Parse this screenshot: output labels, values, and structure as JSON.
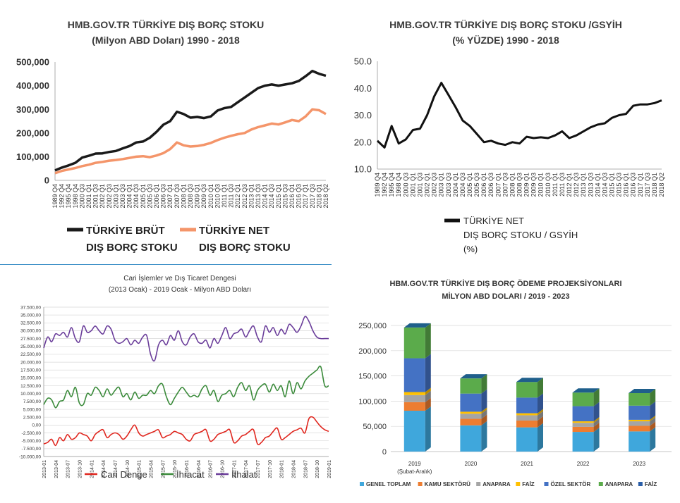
{
  "chart_data": [
    {
      "type": "line",
      "title": "HMB.GOV.TR TÜRKİYE DIŞ BORÇ STOKU",
      "subtitle": "(Milyon ABD Doları) 1990 - 2018",
      "y_ticks": [
        "500,000",
        "400,000",
        "300,000",
        "200,000",
        "100,000",
        "0"
      ],
      "ylim": [
        0,
        500000
      ],
      "x_ticks": [
        "1989 Q4",
        "1992 Q4",
        "1995 Q4",
        "1998 Q4",
        "2000 Q3",
        "2001 Q1",
        "2001 Q3",
        "2002 Q1",
        "2002 Q3",
        "2003 Q1",
        "2003 Q3",
        "2004 Q1",
        "2004 Q3",
        "2005 Q1",
        "2005 Q3",
        "2006 Q1",
        "2006 Q3",
        "2007 Q1",
        "2007 Q3",
        "2008 Q1",
        "2008 Q3",
        "2009 Q1",
        "2009 Q3",
        "2010 Q1",
        "2010 Q3",
        "2011 Q1",
        "2011 Q3",
        "2012 Q1",
        "2012 Q3",
        "2013 Q1",
        "2013 Q3",
        "2014 Q1",
        "2014 Q3",
        "2015 Q1",
        "2015 Q3",
        "2016 Q1",
        "2016 Q3",
        "2017 Q1",
        "2017 Q3",
        "2018 Q1",
        "2018 Q2"
      ],
      "series": [
        {
          "name": "TÜRKİYE BRÜT DIŞ BORÇ STOKU",
          "legend_lines": [
            "TÜRKİYE BRÜT",
            "DIŞ BORÇ STOKU"
          ],
          "color": "#1a1a1a",
          "values": [
            42000,
            54000,
            63000,
            74000,
            96000,
            104000,
            113000,
            114000,
            120000,
            124000,
            135000,
            145000,
            160000,
            164000,
            180000,
            205000,
            235000,
            250000,
            290000,
            280000,
            265000,
            268000,
            263000,
            270000,
            295000,
            305000,
            310000,
            330000,
            350000,
            370000,
            390000,
            400000,
            405000,
            400000,
            405000,
            410000,
            420000,
            440000,
            462000,
            450000,
            442000
          ]
        },
        {
          "name": "TÜRKİYE NET DIŞ BORÇ STOKU",
          "legend_lines": [
            "TÜRKİYE NET",
            "DIŞ BORÇ STOKU"
          ],
          "color": "#f4956a",
          "values": [
            30000,
            40000,
            46000,
            52000,
            60000,
            66000,
            74000,
            78000,
            83000,
            86000,
            90000,
            95000,
            100000,
            102000,
            98000,
            105000,
            115000,
            132000,
            160000,
            148000,
            143000,
            145000,
            150000,
            158000,
            170000,
            180000,
            188000,
            195000,
            200000,
            215000,
            225000,
            232000,
            240000,
            236000,
            245000,
            255000,
            250000,
            270000,
            300000,
            296000,
            280000
          ]
        }
      ]
    },
    {
      "type": "line",
      "title": "HMB.GOV.TR TÜRKİYE DIŞ BORÇ STOKU /GSYİH",
      "subtitle": "(% YÜZDE) 1990 - 2018",
      "y_ticks": [
        "50.0",
        "40.0",
        "30.0",
        "20.0",
        "10.0"
      ],
      "ylim": [
        10,
        50
      ],
      "x_ticks": [
        "1989 Q4",
        "1992 Q4",
        "1995 Q4",
        "1998 Q4",
        "2000 Q3",
        "2001 Q1",
        "2001 Q3",
        "2002 Q1",
        "2002 Q3",
        "2003 Q1",
        "2003 Q3",
        "2004 Q1",
        "2004 Q3",
        "2005 Q1",
        "2005 Q3",
        "2006 Q1",
        "2006 Q3",
        "2007 Q1",
        "2007 Q3",
        "2008 Q1",
        "2008 Q3",
        "2009 Q1",
        "2009 Q3",
        "2010 Q1",
        "2010 Q3",
        "2011 Q1",
        "2011 Q3",
        "2012 Q1",
        "2012 Q3",
        "2013 Q1",
        "2013 Q3",
        "2014 Q1",
        "2014 Q3",
        "2015 Q1",
        "2015 Q3",
        "2016 Q1",
        "2016 Q3",
        "2017 Q1",
        "2017 Q3",
        "2018 Q1",
        "2018 Q2"
      ],
      "series": [
        {
          "name": "TÜRKİYE NET DIŞ BORÇ STOKU / GSYİH (%)",
          "legend_lines": [
            "TÜRKİYE NET",
            "DIŞ BORÇ STOKU / GSYİH",
            "(%)"
          ],
          "color": "#111111",
          "values": [
            20.5,
            18.0,
            26.0,
            19.5,
            21.0,
            24.5,
            25.0,
            30.0,
            37.0,
            42.0,
            37.5,
            33.0,
            28.0,
            26.0,
            23.0,
            20.0,
            20.5,
            19.5,
            19.0,
            20.0,
            19.5,
            22.0,
            21.5,
            21.8,
            21.5,
            22.5,
            24.0,
            21.5,
            22.5,
            24.0,
            25.5,
            26.5,
            27.0,
            29.0,
            30.0,
            30.5,
            33.5,
            34.0,
            34.0,
            34.5,
            35.5
          ]
        }
      ]
    },
    {
      "type": "line",
      "title": "Cari İşlemler ve Dış Ticaret Dengesi",
      "subtitle": "(2013 Ocak) - 2019 Ocak - Milyon ABD Doları",
      "y_ticks": [
        "37.500,00",
        "35.000,00",
        "32.500,00",
        "30.000,00",
        "27.500,00",
        "25.000,00",
        "22.500,00",
        "20.000,00",
        "17.500,00",
        "15.000,00",
        "12.500,00",
        "10.000,00",
        "7.500,00",
        "5.000,00",
        "2.500,00",
        "0,00",
        "-2.500,00",
        "-5.000,00",
        "-7.500,00",
        "-10.000,00"
      ],
      "ylim": [
        -10000,
        37500
      ],
      "x_ticks": [
        "2013-01",
        "2013-04",
        "2013-07",
        "2013-10",
        "2014-01",
        "2014-04",
        "2014-07",
        "2014-10",
        "2015-01",
        "2015-04",
        "2015-07",
        "2015-10",
        "2016-01",
        "2016-04",
        "2016-07",
        "2016-10",
        "2017-01",
        "2017-04",
        "2017-07",
        "2017-10",
        "2018-01",
        "2018-04",
        "2018-07",
        "2018-10",
        "2019-01"
      ],
      "series": [
        {
          "name": "Cari Denge",
          "color": "#e0271f",
          "values": [
            -6000,
            -5500,
            -4500,
            -6500,
            -4000,
            -5000,
            -3000,
            -4500,
            -4000,
            -2500,
            -3000,
            -3500,
            -5000,
            -3000,
            -2000,
            -1500,
            -4000,
            -3000,
            -2500,
            -3000,
            -4500,
            -3500,
            -1500,
            0,
            -2500,
            -3500,
            -3000,
            -2500,
            -2000,
            -1500,
            -4000,
            -3500,
            -3000,
            -2000,
            -2500,
            -3000,
            -4500,
            -5000,
            -3000,
            -2500,
            -2000,
            -1500,
            -5000,
            -4500,
            -3000,
            -2500,
            -2000,
            -1500,
            -5500,
            -5000,
            -3500,
            -3000,
            -2000,
            -1500,
            -6000,
            -5500,
            -4000,
            -3500,
            -2000,
            -1000,
            -4500,
            -4000,
            -3000,
            -2000,
            -1500,
            -1000,
            -2500,
            2000,
            2500,
            1000,
            -500,
            -1500,
            -2000
          ]
        },
        {
          "name": "İhracat",
          "color": "#3a8a3a",
          "values": [
            6500,
            8500,
            8000,
            5500,
            7500,
            8000,
            11000,
            9000,
            12000,
            7000,
            6500,
            10000,
            9500,
            12000,
            11000,
            9000,
            11500,
            9500,
            11000,
            12000,
            9000,
            10000,
            8000,
            10500,
            8500,
            9500,
            9500,
            11000,
            10000,
            12500,
            13000,
            9000,
            6500,
            8500,
            10500,
            12000,
            10500,
            9000,
            9500,
            9000,
            11500,
            12500,
            9500,
            11000,
            7500,
            9500,
            10000,
            11000,
            9000,
            12000,
            13500,
            11000,
            12500,
            8000,
            11000,
            12500,
            13000,
            10500,
            13000,
            11000,
            12500,
            9000,
            14000,
            10000,
            13500,
            11500,
            14000,
            15500,
            16500,
            17500,
            18500,
            12500,
            12500
          ]
        },
        {
          "name": "İthalat",
          "color": "#6a3d9a",
          "values": [
            24500,
            28000,
            26500,
            29000,
            28500,
            29500,
            28000,
            31000,
            27500,
            26500,
            31500,
            29500,
            30000,
            31500,
            30000,
            29000,
            31500,
            30500,
            27000,
            26000,
            26500,
            27500,
            25500,
            27000,
            26000,
            28000,
            28500,
            22500,
            20500,
            25500,
            27000,
            25500,
            28500,
            27000,
            30000,
            26500,
            25500,
            28000,
            29000,
            26500,
            26000,
            27000,
            24500,
            27500,
            26000,
            28500,
            31000,
            27500,
            29000,
            29500,
            30500,
            28000,
            30000,
            31500,
            28000,
            26500,
            31500,
            29500,
            31000,
            28500,
            30500,
            29000,
            32000,
            31000,
            29500,
            31500,
            34500,
            33000,
            30000,
            28000,
            27500,
            27500,
            27500
          ]
        }
      ]
    },
    {
      "type": "bar",
      "title": "HBM.GOV.TR TÜRKİYE DIŞ BORÇ ÖDEME PROJEKSİYONLARI",
      "subtitle": "MİLYON ABD DOLARI / 2019 - 2023",
      "y_ticks": [
        "250,000",
        "200,000",
        "150,000",
        "100,000",
        "50,000",
        "0"
      ],
      "ylim": [
        0,
        250000
      ],
      "categories": [
        "2019",
        "2020",
        "2021",
        "2022",
        "2023"
      ],
      "category_sub": [
        "(Şubat-Aralık)",
        "",
        "",
        "",
        ""
      ],
      "stacked": true,
      "series": [
        {
          "name": "GENEL TOPLAM",
          "color": "#3fa7dc",
          "values": [
            81000,
            52000,
            48000,
            39000,
            40000
          ]
        },
        {
          "name": "KAMU SEKTÖRÜ",
          "color": "#ed7d31",
          "values": [
            17000,
            13000,
            13500,
            10000,
            11000
          ]
        },
        {
          "name": "ANAPARA",
          "color": "#a5a5a5",
          "values": [
            14000,
            10000,
            10500,
            8000,
            9000
          ]
        },
        {
          "name": "FAİZ",
          "color": "#ffc000",
          "values": [
            6000,
            4000,
            4000,
            3000,
            3000
          ]
        },
        {
          "name": "ÖZEL SEKTÖR",
          "color": "#4472c4",
          "values": [
            67000,
            36000,
            31000,
            30000,
            28000
          ]
        },
        {
          "name": "ANAPARA",
          "color": "#5bab4b",
          "values": [
            61000,
            30000,
            31000,
            27000,
            25000
          ]
        },
        {
          "name": "FAİZ",
          "color": "#2a5ea8",
          "values": [
            0,
            0,
            0,
            0,
            0
          ]
        }
      ]
    }
  ]
}
